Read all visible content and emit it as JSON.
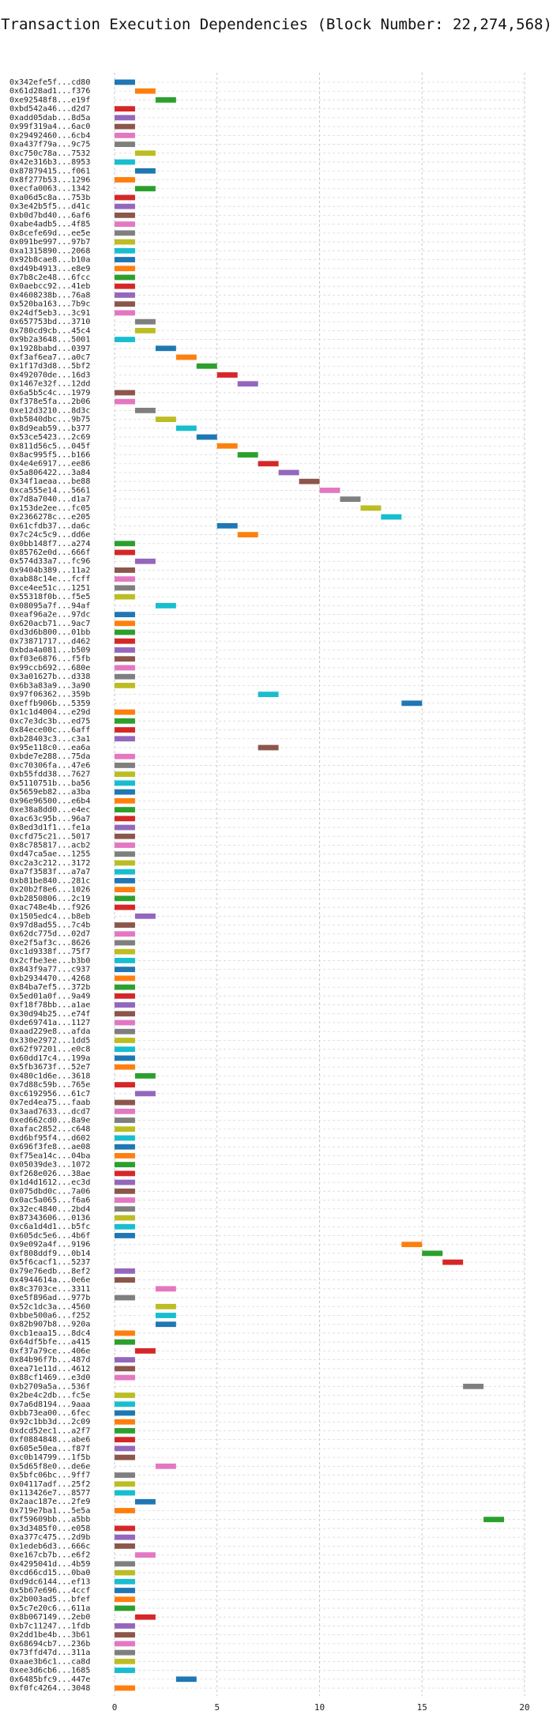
{
  "chart_data": {
    "type": "bar",
    "orientation": "horizontal",
    "title": "Transaction Execution Dependencies (Block Number: 22,274,568)",
    "xlabel": "",
    "ylabel": "",
    "xlim": [
      0,
      20
    ],
    "xticks": [
      0,
      5,
      10,
      15,
      20
    ],
    "grid": "dashed",
    "legend": "none",
    "bar_length": 1,
    "palette": [
      "#1f77b4",
      "#ff7f0e",
      "#2ca02c",
      "#d62728",
      "#9467bd",
      "#8c564b",
      "#e377c2",
      "#7f7f7f",
      "#bcbd22",
      "#17becf"
    ],
    "transactions": [
      {
        "label": "0x342efe5f...cd80",
        "start": 0
      },
      {
        "label": "0x61d28ad1...f376",
        "start": 1
      },
      {
        "label": "0xe92548f8...e19f",
        "start": 2
      },
      {
        "label": "0xbd542a46...d2d7",
        "start": 0
      },
      {
        "label": "0xadd05dab...8d5a",
        "start": 0
      },
      {
        "label": "0x99f319a4...6ac0",
        "start": 0
      },
      {
        "label": "0x29492460...6cb4",
        "start": 0
      },
      {
        "label": "0xa437f79a...9c75",
        "start": 0
      },
      {
        "label": "0xc750c78a...7532",
        "start": 1
      },
      {
        "label": "0x42e316b3...8953",
        "start": 0
      },
      {
        "label": "0x87879415...f061",
        "start": 1
      },
      {
        "label": "0x8f277b53...1296",
        "start": 0
      },
      {
        "label": "0xecfa0063...1342",
        "start": 1
      },
      {
        "label": "0xa06d5c8a...753b",
        "start": 0
      },
      {
        "label": "0x3e42b5f5...d41c",
        "start": 0
      },
      {
        "label": "0xb0d7bd40...6af6",
        "start": 0
      },
      {
        "label": "0xabe4adb5...4f85",
        "start": 0
      },
      {
        "label": "0x8cefe69d...ee5e",
        "start": 0
      },
      {
        "label": "0x091be997...97b7",
        "start": 0
      },
      {
        "label": "0xa1315890...2068",
        "start": 0
      },
      {
        "label": "0x92b8cae8...b10a",
        "start": 0
      },
      {
        "label": "0xd49b4913...e8e9",
        "start": 0
      },
      {
        "label": "0x7b8c2e48...6fcc",
        "start": 0
      },
      {
        "label": "0x0aebcc92...41eb",
        "start": 0
      },
      {
        "label": "0x4608238b...76a8",
        "start": 0
      },
      {
        "label": "0x520ba163...7b9c",
        "start": 0
      },
      {
        "label": "0x24df5eb3...3c91",
        "start": 0
      },
      {
        "label": "0x657753bd...3710",
        "start": 1
      },
      {
        "label": "0x780cd9cb...45c4",
        "start": 1
      },
      {
        "label": "0x9b2a3648...5001",
        "start": 0
      },
      {
        "label": "0x1928babd...0397",
        "start": 2
      },
      {
        "label": "0xf3af6ea7...a0c7",
        "start": 3
      },
      {
        "label": "0x1f17d3d8...5bf2",
        "start": 4
      },
      {
        "label": "0x492070de...16d3",
        "start": 5
      },
      {
        "label": "0x1467e32f...12dd",
        "start": 6
      },
      {
        "label": "0x6a5b5c4c...1979",
        "start": 0
      },
      {
        "label": "0xf378e5fa...2b06",
        "start": 0
      },
      {
        "label": "0xe12d3210...8d3c",
        "start": 1
      },
      {
        "label": "0xb5840dbc...9b75",
        "start": 2
      },
      {
        "label": "0x8d9eab59...b377",
        "start": 3
      },
      {
        "label": "0x53ce5423...2c69",
        "start": 4
      },
      {
        "label": "0x811d56c5...045f",
        "start": 5
      },
      {
        "label": "0x8ac995f5...b166",
        "start": 6
      },
      {
        "label": "0x4e4e6917...ee86",
        "start": 7
      },
      {
        "label": "0x5a806422...3a84",
        "start": 8
      },
      {
        "label": "0x34f1aeaa...be88",
        "start": 9
      },
      {
        "label": "0xca555e14...5661",
        "start": 10
      },
      {
        "label": "0x7d8a7040...d1a7",
        "start": 11
      },
      {
        "label": "0x153de2ee...fc05",
        "start": 12
      },
      {
        "label": "0x2366278c...e205",
        "start": 13
      },
      {
        "label": "0x61cfdb37...da6c",
        "start": 5
      },
      {
        "label": "0x7c24c5c9...dd6e",
        "start": 6
      },
      {
        "label": "0x0bb148f7...a274",
        "start": 0
      },
      {
        "label": "0x85762e0d...666f",
        "start": 0
      },
      {
        "label": "0x574d33a7...fc96",
        "start": 1
      },
      {
        "label": "0x9404b389...11a2",
        "start": 0
      },
      {
        "label": "0xab88c14e...fcff",
        "start": 0
      },
      {
        "label": "0xce4ee51c...1251",
        "start": 0
      },
      {
        "label": "0x55318f0b...f5e5",
        "start": 0
      },
      {
        "label": "0x08095a7f...94af",
        "start": 2
      },
      {
        "label": "0xeaf96a2e...97dc",
        "start": 0
      },
      {
        "label": "0x620acb71...9ac7",
        "start": 0
      },
      {
        "label": "0xd3d6b800...01bb",
        "start": 0
      },
      {
        "label": "0x73871717...d462",
        "start": 0
      },
      {
        "label": "0xbda4a081...b509",
        "start": 0
      },
      {
        "label": "0xf03e6876...f5fb",
        "start": 0
      },
      {
        "label": "0x99ccb692...680e",
        "start": 0
      },
      {
        "label": "0x3a01627b...d338",
        "start": 0
      },
      {
        "label": "0x6b3a83a9...3a90",
        "start": 0
      },
      {
        "label": "0x97f06362...359b",
        "start": 7
      },
      {
        "label": "0xeffb906b...5359",
        "start": 14
      },
      {
        "label": "0x1c1d4004...e29d",
        "start": 0
      },
      {
        "label": "0xc7e3dc3b...ed75",
        "start": 0
      },
      {
        "label": "0x84ece00c...6aff",
        "start": 0
      },
      {
        "label": "0xb28403c3...c3a1",
        "start": 0
      },
      {
        "label": "0x95e118c0...ea6a",
        "start": 7
      },
      {
        "label": "0xbde7e288...75da",
        "start": 0
      },
      {
        "label": "0xc70306fa...47e6",
        "start": 0
      },
      {
        "label": "0xb55fdd38...7627",
        "start": 0
      },
      {
        "label": "0x5110751b...ba56",
        "start": 0
      },
      {
        "label": "0x5659eb82...a3ba",
        "start": 0
      },
      {
        "label": "0x96e96500...e6b4",
        "start": 0
      },
      {
        "label": "0xe38a8dd0...e4ec",
        "start": 0
      },
      {
        "label": "0xac63c95b...96a7",
        "start": 0
      },
      {
        "label": "0x8ed3d1f1...fe1a",
        "start": 0
      },
      {
        "label": "0xcfd75c21...5017",
        "start": 0
      },
      {
        "label": "0x8c785817...acb2",
        "start": 0
      },
      {
        "label": "0xd47ca5ae...1255",
        "start": 0
      },
      {
        "label": "0xc2a3c212...3172",
        "start": 0
      },
      {
        "label": "0xa7f3583f...a7a7",
        "start": 0
      },
      {
        "label": "0xb81be840...281c",
        "start": 0
      },
      {
        "label": "0x20b2f8e6...1026",
        "start": 0
      },
      {
        "label": "0xb2850806...2c19",
        "start": 0
      },
      {
        "label": "0xac748e4b...f926",
        "start": 0
      },
      {
        "label": "0x1505edc4...b8eb",
        "start": 1
      },
      {
        "label": "0x97d8ad55...7c4b",
        "start": 0
      },
      {
        "label": "0x62dc775d...02d7",
        "start": 0
      },
      {
        "label": "0xe2f5af3c...8626",
        "start": 0
      },
      {
        "label": "0xc1d9338f...75f7",
        "start": 0
      },
      {
        "label": "0x2cfbe3ee...b3b0",
        "start": 0
      },
      {
        "label": "0x843f9a77...c937",
        "start": 0
      },
      {
        "label": "0xb2934470...4268",
        "start": 0
      },
      {
        "label": "0x84ba7ef5...372b",
        "start": 0
      },
      {
        "label": "0x5ed01a0f...9a49",
        "start": 0
      },
      {
        "label": "0xf18f78bb...a1ae",
        "start": 0
      },
      {
        "label": "0x30d94b25...e74f",
        "start": 0
      },
      {
        "label": "0xde69741a...1127",
        "start": 0
      },
      {
        "label": "0xaad229e8...afda",
        "start": 0
      },
      {
        "label": "0x330e2972...1dd5",
        "start": 0
      },
      {
        "label": "0x62f97201...e0c8",
        "start": 0
      },
      {
        "label": "0x60dd17c4...199a",
        "start": 0
      },
      {
        "label": "0x5fb3673f...52e7",
        "start": 0
      },
      {
        "label": "0x480c1d6e...3618",
        "start": 1
      },
      {
        "label": "0x7d88c59b...765e",
        "start": 0
      },
      {
        "label": "0xc6192956...61c7",
        "start": 1
      },
      {
        "label": "0x7ed4ea75...faab",
        "start": 0
      },
      {
        "label": "0x3aad7633...dcd7",
        "start": 0
      },
      {
        "label": "0xed662cd0...8a9e",
        "start": 0
      },
      {
        "label": "0xafac2852...c648",
        "start": 0
      },
      {
        "label": "0xd6bf95f4...d602",
        "start": 0
      },
      {
        "label": "0x696f3fe8...ae08",
        "start": 0
      },
      {
        "label": "0xf75ea14c...04ba",
        "start": 0
      },
      {
        "label": "0x05039de3...1072",
        "start": 0
      },
      {
        "label": "0xf268e026...38ae",
        "start": 0
      },
      {
        "label": "0x1d4d1612...ec3d",
        "start": 0
      },
      {
        "label": "0x075dbd0c...7a06",
        "start": 0
      },
      {
        "label": "0x0ac5a065...f6a6",
        "start": 0
      },
      {
        "label": "0x32ec4840...2bd4",
        "start": 0
      },
      {
        "label": "0x87343606...0136",
        "start": 0
      },
      {
        "label": "0xc6a1d4d1...b5fc",
        "start": 0
      },
      {
        "label": "0x605dc5e6...4b6f",
        "start": 0
      },
      {
        "label": "0x9e092a4f...9196",
        "start": 14
      },
      {
        "label": "0xf808ddf9...0b14",
        "start": 15
      },
      {
        "label": "0x5f6cacf1...5237",
        "start": 16
      },
      {
        "label": "0x79e76edb...8ef2",
        "start": 0
      },
      {
        "label": "0x4944614a...0e6e",
        "start": 0
      },
      {
        "label": "0x8c3703ce...3311",
        "start": 2
      },
      {
        "label": "0xe5f896ad...977b",
        "start": 0
      },
      {
        "label": "0x52c1dc3a...4560",
        "start": 2
      },
      {
        "label": "0xbbe500a6...f252",
        "start": 2
      },
      {
        "label": "0x82b907b8...920a",
        "start": 2
      },
      {
        "label": "0xcb1eaa15...8dc4",
        "start": 0
      },
      {
        "label": "0x64df5bfe...a415",
        "start": 0
      },
      {
        "label": "0xf37a79ce...406e",
        "start": 1
      },
      {
        "label": "0x84b96f7b...487d",
        "start": 0
      },
      {
        "label": "0xea71e11d...4612",
        "start": 0
      },
      {
        "label": "0x88cf1469...e3d0",
        "start": 0
      },
      {
        "label": "0xb2709a5a...536f",
        "start": 17
      },
      {
        "label": "0x2be4c2db...fc5e",
        "start": 0
      },
      {
        "label": "0x7a6d8194...9aaa",
        "start": 0
      },
      {
        "label": "0xbb73ea00...6fec",
        "start": 0
      },
      {
        "label": "0x92c1bb3d...2c09",
        "start": 0
      },
      {
        "label": "0xdcd52ec1...a2f7",
        "start": 0
      },
      {
        "label": "0xf0884848...abe6",
        "start": 0
      },
      {
        "label": "0x605e50ea...f87f",
        "start": 0
      },
      {
        "label": "0xc0b14799...1f5b",
        "start": 0
      },
      {
        "label": "0x5d65f8e0...de6e",
        "start": 2
      },
      {
        "label": "0x5bfc06bc...9ff7",
        "start": 0
      },
      {
        "label": "0x04117adf...25f2",
        "start": 0
      },
      {
        "label": "0x113426e7...8577",
        "start": 0
      },
      {
        "label": "0x2aac187e...2fe9",
        "start": 1
      },
      {
        "label": "0x719e7ba1...5e5a",
        "start": 0
      },
      {
        "label": "0xf59609bb...a5bb",
        "start": 18
      },
      {
        "label": "0x3d3485f0...e058",
        "start": 0
      },
      {
        "label": "0xa377c475...2d9b",
        "start": 0
      },
      {
        "label": "0x1edeb6d3...666c",
        "start": 0
      },
      {
        "label": "0xe167cb7b...e6f2",
        "start": 1
      },
      {
        "label": "0x4295041d...4b59",
        "start": 0
      },
      {
        "label": "0xcd66cd15...0ba0",
        "start": 0
      },
      {
        "label": "0xd9dc6144...ef13",
        "start": 0
      },
      {
        "label": "0x5b67e696...4ccf",
        "start": 0
      },
      {
        "label": "0x2b003ad5...bfef",
        "start": 0
      },
      {
        "label": "0x5c7e20c6...611a",
        "start": 0
      },
      {
        "label": "0x8b067149...2eb0",
        "start": 1
      },
      {
        "label": "0xb7c11247...1fdb",
        "start": 0
      },
      {
        "label": "0x2dd1be4b...3b61",
        "start": 0
      },
      {
        "label": "0x68694cb7...236b",
        "start": 0
      },
      {
        "label": "0x73ffd47d...311a",
        "start": 0
      },
      {
        "label": "0xaae3b6c1...ca8d",
        "start": 0
      },
      {
        "label": "0xee3d6cb6...1685",
        "start": 0
      },
      {
        "label": "0x6485bfc9...447e",
        "start": 3
      },
      {
        "label": "0xf0fc4264...3048",
        "start": 0
      }
    ]
  }
}
